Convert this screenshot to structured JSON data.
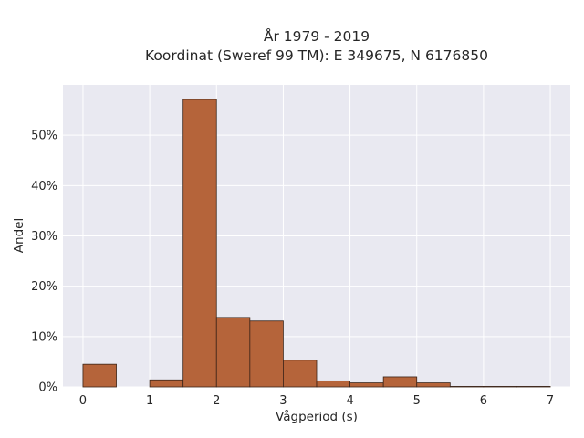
{
  "chart_data": {
    "type": "bar",
    "title": "År 1979 - 2019",
    "subtitle": "Koordinat (Sweref 99 TM): E 349675, N 6176850",
    "xlabel": "Vågperiod (s)",
    "ylabel": "Andel",
    "xlim": [
      -0.3,
      7.3
    ],
    "ylim": [
      0,
      0.6
    ],
    "x_ticks": [
      0,
      1,
      2,
      3,
      4,
      5,
      6,
      7
    ],
    "x_tick_labels": [
      "0",
      "1",
      "2",
      "3",
      "4",
      "5",
      "6",
      "7"
    ],
    "y_ticks": [
      0,
      0.1,
      0.2,
      0.3,
      0.4,
      0.5
    ],
    "y_tick_labels": [
      "0%",
      "10%",
      "20%",
      "30%",
      "40%",
      "50%"
    ],
    "grid": true,
    "bins": [
      {
        "start": 0.0,
        "end": 0.5,
        "value": 0.045
      },
      {
        "start": 0.5,
        "end": 1.0,
        "value": 0.0
      },
      {
        "start": 1.0,
        "end": 1.5,
        "value": 0.014
      },
      {
        "start": 1.5,
        "end": 2.0,
        "value": 0.571
      },
      {
        "start": 2.0,
        "end": 2.5,
        "value": 0.138
      },
      {
        "start": 2.5,
        "end": 3.0,
        "value": 0.131
      },
      {
        "start": 3.0,
        "end": 3.5,
        "value": 0.053
      },
      {
        "start": 3.5,
        "end": 4.0,
        "value": 0.012
      },
      {
        "start": 4.0,
        "end": 4.5,
        "value": 0.008
      },
      {
        "start": 4.5,
        "end": 5.0,
        "value": 0.02
      },
      {
        "start": 5.0,
        "end": 5.5,
        "value": 0.008
      },
      {
        "start": 5.5,
        "end": 6.0,
        "value": 0.001
      },
      {
        "start": 6.0,
        "end": 6.5,
        "value": 0.001
      },
      {
        "start": 6.5,
        "end": 7.0,
        "value": 0.001
      }
    ],
    "bar_color": "#b5643a",
    "bar_edge_color": "#3a2418",
    "plot_background": "#e9e9f1",
    "grid_color": "#ffffff"
  }
}
